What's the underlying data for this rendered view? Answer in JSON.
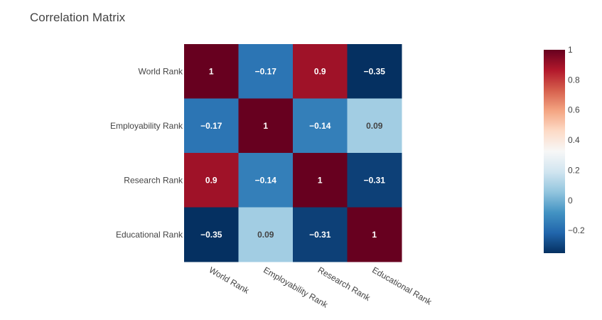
{
  "chart_data": {
    "type": "heatmap",
    "title": "Correlation Matrix",
    "x_categories": [
      "World Rank",
      "Employability Rank",
      "Research Rank",
      "Educational Rank"
    ],
    "y_categories": [
      "World Rank",
      "Employability Rank",
      "Research Rank",
      "Educational Rank"
    ],
    "values": [
      [
        1,
        -0.17,
        0.9,
        -0.35
      ],
      [
        -0.17,
        1,
        -0.14,
        0.09
      ],
      [
        0.9,
        -0.14,
        1,
        -0.31
      ],
      [
        -0.35,
        0.09,
        -0.31,
        1
      ]
    ],
    "labels": [
      [
        "1",
        "−0.17",
        "0.9",
        "−0.35"
      ],
      [
        "−0.17",
        "1",
        "−0.14",
        "0.09"
      ],
      [
        "0.9",
        "−0.14",
        "1",
        "−0.31"
      ],
      [
        "−0.35",
        "0.09",
        "−0.31",
        "1"
      ]
    ],
    "colorscale": "RdBu (reversed)",
    "zrange": [
      -0.35,
      1
    ],
    "colorbar": {
      "tick_values": [
        1,
        0.8,
        0.6,
        0.4,
        0.2,
        0,
        -0.2
      ],
      "tick_labels": [
        "1",
        "0.8",
        "0.6",
        "0.4",
        "0.2",
        "0",
        "−0.2"
      ],
      "colors": [
        "#053061",
        "#2166ac",
        "#4393c3",
        "#92c5de",
        "#d1e5f0",
        "#f7f7f7",
        "#fddbc7",
        "#f4a582",
        "#d6604d",
        "#b2182b",
        "#67001f"
      ]
    }
  }
}
